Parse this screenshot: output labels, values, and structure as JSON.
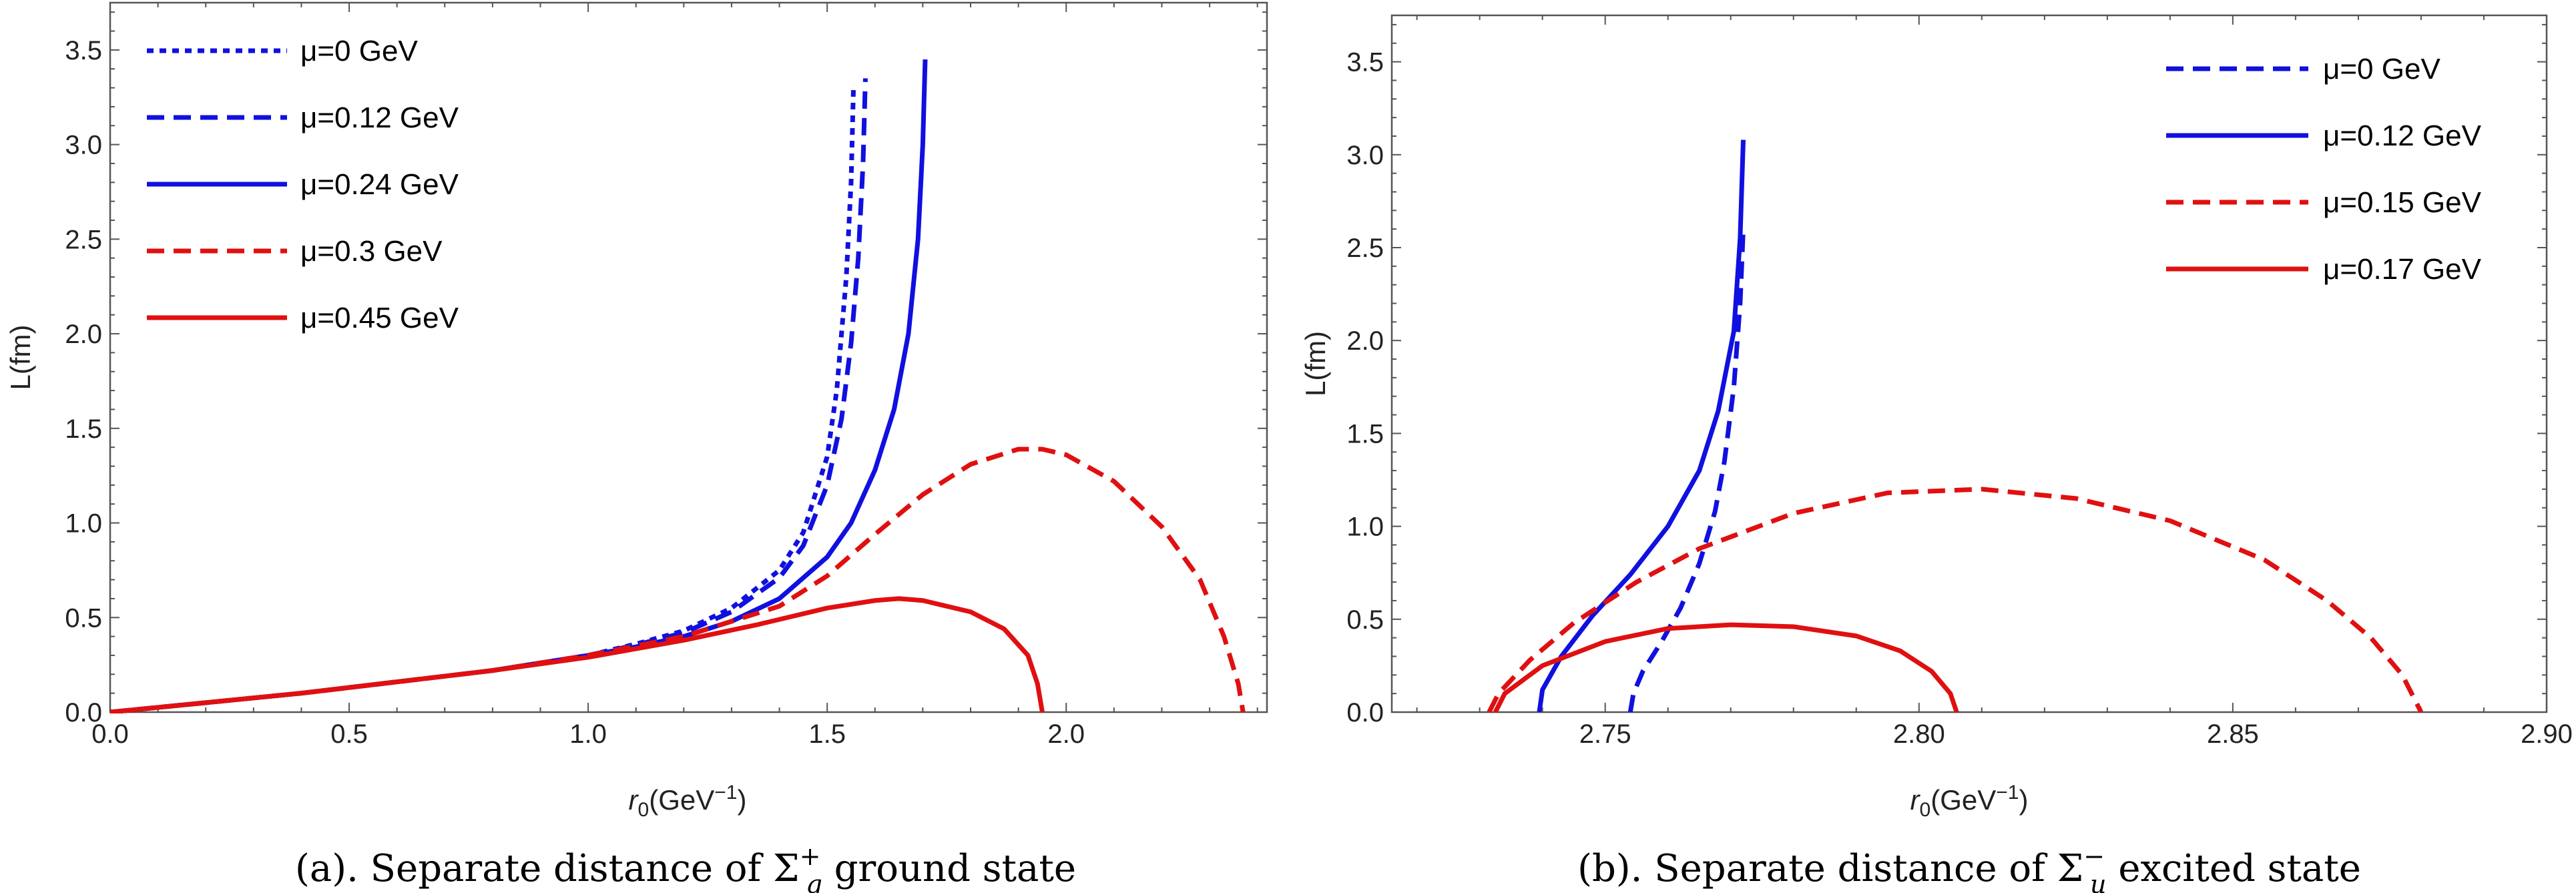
{
  "chart_data": [
    {
      "type": "line",
      "panel": "a",
      "xlabel": "r0(GeV⁻¹)",
      "xlabel_parts": {
        "base": "r",
        "sub": "0",
        "rest": "(GeV",
        "sup": "−1",
        "end": ")"
      },
      "ylabel": "L(fm)",
      "xlim": [
        0.0,
        2.42
      ],
      "ylim": [
        0.0,
        3.75
      ],
      "xticks": [
        0.0,
        0.5,
        1.0,
        1.5,
        2.0
      ],
      "xtick_labels": [
        "0.0",
        "0.5",
        "1.0",
        "1.5",
        "2.0"
      ],
      "yticks": [
        0.0,
        0.5,
        1.0,
        1.5,
        2.0,
        2.5,
        3.0,
        3.5
      ],
      "ytick_labels": [
        "0.0",
        "0.5",
        "1.0",
        "1.5",
        "2.0",
        "2.5",
        "3.0",
        "3.5"
      ],
      "legend_position": "top-left",
      "caption": {
        "prefix": "(a).  Separate distance of Σ",
        "sub": "g",
        "sup": "+",
        "suffix": " ground state"
      },
      "series": [
        {
          "name": "μ=0 GeV",
          "color": "#1010e0",
          "dash": "dotted",
          "x": [
            0.0,
            0.2,
            0.4,
            0.6,
            0.8,
            1.0,
            1.1,
            1.2,
            1.3,
            1.4,
            1.45,
            1.5,
            1.52,
            1.54,
            1.55,
            1.555
          ],
          "y": [
            0.0,
            0.05,
            0.1,
            0.16,
            0.22,
            0.3,
            0.36,
            0.43,
            0.55,
            0.75,
            0.95,
            1.35,
            1.7,
            2.3,
            2.8,
            3.3
          ]
        },
        {
          "name": "μ=0.12 GeV",
          "color": "#1010e0",
          "dash": "dashed",
          "x": [
            0.0,
            0.2,
            0.4,
            0.6,
            0.8,
            1.0,
            1.1,
            1.2,
            1.3,
            1.4,
            1.45,
            1.5,
            1.53,
            1.55,
            1.565,
            1.575,
            1.58
          ],
          "y": [
            0.0,
            0.05,
            0.1,
            0.16,
            0.22,
            0.3,
            0.355,
            0.42,
            0.53,
            0.71,
            0.88,
            1.2,
            1.55,
            1.95,
            2.4,
            2.9,
            3.35
          ]
        },
        {
          "name": "μ=0.24 GeV",
          "color": "#1010e0",
          "dash": "solid",
          "x": [
            0.0,
            0.2,
            0.4,
            0.6,
            0.8,
            1.0,
            1.1,
            1.2,
            1.3,
            1.4,
            1.5,
            1.55,
            1.6,
            1.64,
            1.67,
            1.69,
            1.7,
            1.705
          ],
          "y": [
            0.0,
            0.05,
            0.1,
            0.16,
            0.22,
            0.3,
            0.345,
            0.4,
            0.48,
            0.6,
            0.82,
            1.0,
            1.28,
            1.6,
            2.0,
            2.5,
            3.0,
            3.45
          ]
        },
        {
          "name": "μ=0.3 GeV",
          "color": "#e01010",
          "dash": "dashed",
          "x": [
            0.0,
            0.2,
            0.4,
            0.6,
            0.8,
            1.0,
            1.2,
            1.4,
            1.5,
            1.6,
            1.7,
            1.8,
            1.9,
            1.95,
            2.0,
            2.1,
            2.2,
            2.28,
            2.33,
            2.36,
            2.37
          ],
          "y": [
            0.0,
            0.05,
            0.1,
            0.16,
            0.22,
            0.3,
            0.4,
            0.56,
            0.72,
            0.94,
            1.15,
            1.31,
            1.39,
            1.39,
            1.36,
            1.22,
            0.98,
            0.7,
            0.4,
            0.15,
            0.0
          ]
        },
        {
          "name": "μ=0.45 GeV",
          "color": "#e01010",
          "dash": "solid",
          "x": [
            0.0,
            0.2,
            0.4,
            0.6,
            0.8,
            1.0,
            1.2,
            1.35,
            1.5,
            1.6,
            1.65,
            1.7,
            1.8,
            1.87,
            1.92,
            1.94,
            1.95
          ],
          "y": [
            0.0,
            0.05,
            0.1,
            0.16,
            0.22,
            0.29,
            0.38,
            0.46,
            0.55,
            0.59,
            0.6,
            0.59,
            0.53,
            0.44,
            0.3,
            0.15,
            0.0
          ]
        }
      ]
    },
    {
      "type": "line",
      "panel": "b",
      "xlabel": "r0(GeV⁻¹)",
      "xlabel_parts": {
        "base": "r",
        "sub": "0",
        "rest": "(GeV",
        "sup": "−1",
        "end": ")"
      },
      "ylabel": "L(fm)",
      "xlim": [
        2.716,
        2.9
      ],
      "ylim": [
        0.0,
        3.75
      ],
      "xticks": [
        2.75,
        2.8,
        2.85,
        2.9
      ],
      "xtick_labels": [
        "2.75",
        "2.80",
        "2.85",
        "2.90"
      ],
      "yticks": [
        0.0,
        0.5,
        1.0,
        1.5,
        2.0,
        2.5,
        3.0,
        3.5
      ],
      "ytick_labels": [
        "0.0",
        "0.5",
        "1.0",
        "1.5",
        "2.0",
        "2.5",
        "3.0",
        "3.5"
      ],
      "legend_position": "top-right",
      "caption": {
        "prefix": "(b).  Separate distance of Σ",
        "sub": "u",
        "sup": "−",
        "suffix": " excited state"
      },
      "series": [
        {
          "name": "μ=0 GeV",
          "color": "#1010e0",
          "dash": "dashed",
          "x": [
            2.754,
            2.7545,
            2.756,
            2.759,
            2.762,
            2.765,
            2.7675,
            2.769,
            2.7705,
            2.7715,
            2.772
          ],
          "y": [
            0.0,
            0.1,
            0.22,
            0.38,
            0.56,
            0.8,
            1.08,
            1.35,
            1.75,
            2.2,
            2.6
          ]
        },
        {
          "name": "μ=0.12 GeV",
          "color": "#1010e0",
          "dash": "solid",
          "x": [
            2.7395,
            2.74,
            2.743,
            2.748,
            2.754,
            2.76,
            2.765,
            2.768,
            2.7705,
            2.7715,
            2.772
          ],
          "y": [
            0.0,
            0.12,
            0.3,
            0.52,
            0.74,
            1.0,
            1.3,
            1.62,
            2.05,
            2.55,
            3.08
          ]
        },
        {
          "name": "μ=0.15 GeV",
          "color": "#e01010",
          "dash": "dashed",
          "x": [
            2.7315,
            2.733,
            2.738,
            2.745,
            2.755,
            2.765,
            2.78,
            2.795,
            2.81,
            2.825,
            2.84,
            2.855,
            2.865,
            2.872,
            2.877,
            2.88
          ],
          "y": [
            0.0,
            0.1,
            0.28,
            0.48,
            0.7,
            0.88,
            1.07,
            1.18,
            1.2,
            1.15,
            1.03,
            0.82,
            0.6,
            0.4,
            0.2,
            0.0
          ]
        },
        {
          "name": "μ=0.17 GeV",
          "color": "#e01010",
          "dash": "solid",
          "x": [
            2.7325,
            2.734,
            2.74,
            2.75,
            2.76,
            2.77,
            2.78,
            2.79,
            2.797,
            2.802,
            2.805,
            2.806
          ],
          "y": [
            0.0,
            0.1,
            0.25,
            0.38,
            0.45,
            0.47,
            0.46,
            0.41,
            0.33,
            0.22,
            0.1,
            0.0
          ]
        }
      ]
    }
  ]
}
